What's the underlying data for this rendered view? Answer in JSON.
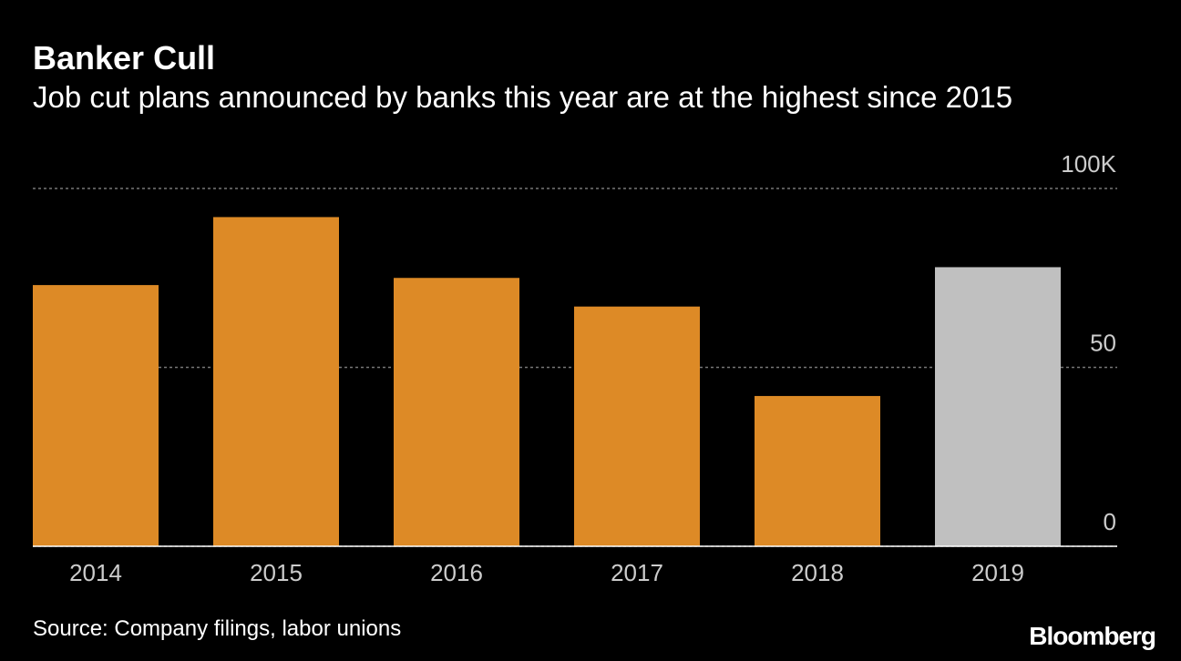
{
  "chart_data": {
    "type": "bar",
    "title": "Banker Cull",
    "subtitle": "Job cut plans announced by banks this year are at the highest since 2015",
    "categories": [
      "2014",
      "2015",
      "2016",
      "2017",
      "2018",
      "2019"
    ],
    "values": [
      73,
      92,
      75,
      67,
      42,
      78
    ],
    "colors": [
      "#dd8a26",
      "#dd8a26",
      "#dd8a26",
      "#dd8a26",
      "#dd8a26",
      "#c0c0c0"
    ],
    "ylim": [
      0,
      100
    ],
    "yticks": [
      0,
      50,
      {
        "value": 100,
        "label": "100K"
      }
    ],
    "grid": true,
    "source": "Source: Company filings, labor unions",
    "brand": "Bloomberg"
  }
}
